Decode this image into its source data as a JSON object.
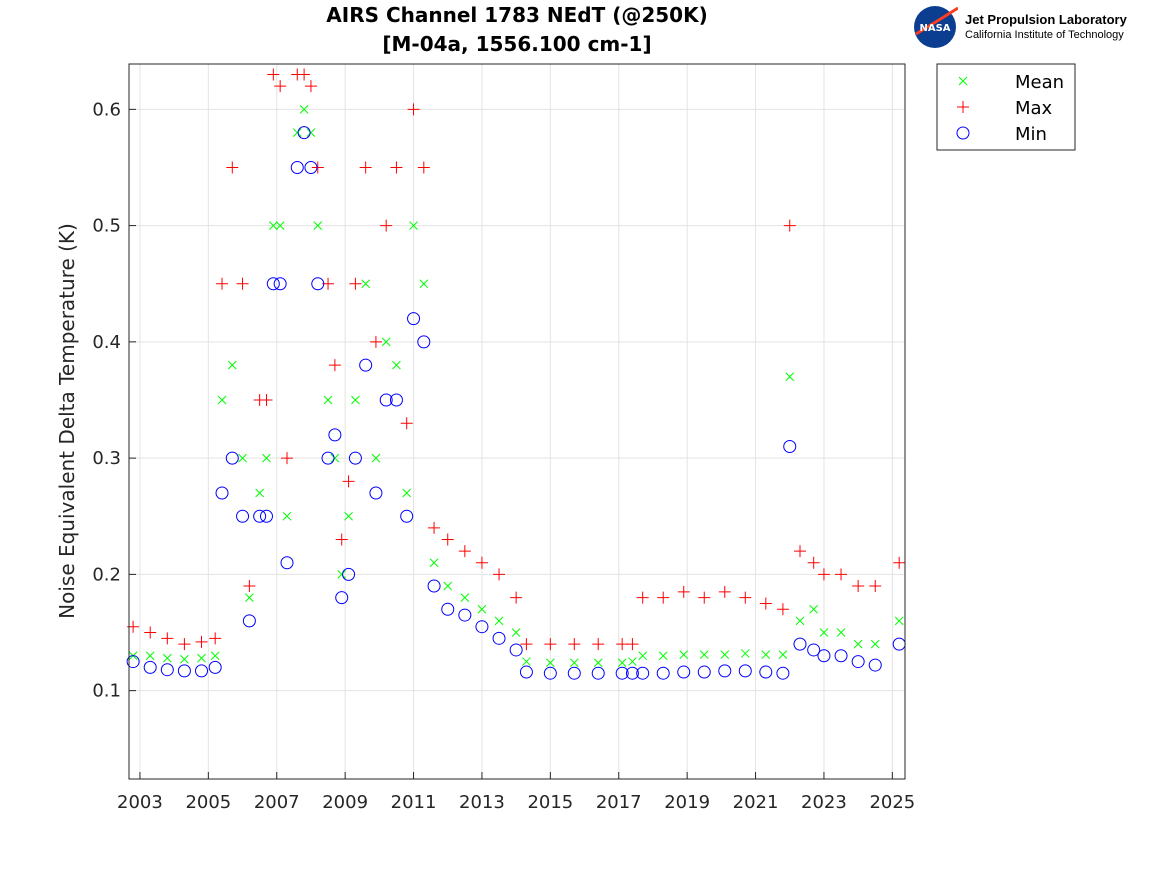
{
  "logo": {
    "agency": "NASA",
    "line1": "Jet Propulsion Laboratory",
    "line2": "California Institute of Technology"
  },
  "chart_data": {
    "type": "scatter",
    "title": [
      "AIRS Channel 1783 NEdT (@250K)",
      "[M-04a, 1556.100 cm-1]"
    ],
    "xlabel": "",
    "ylabel": "Noise Equivalent Delta Temperature (K)",
    "xlim": [
      2002.68,
      2025.37
    ],
    "ylim": [
      0.024,
      0.639
    ],
    "xticks": [
      2003,
      2005,
      2007,
      2009,
      2011,
      2013,
      2015,
      2017,
      2019,
      2021,
      2023,
      2025
    ],
    "yticks": [
      0.1,
      0.2,
      0.3,
      0.4,
      0.5,
      0.6
    ],
    "grid": true,
    "legend_position": "outside-top-right",
    "x": [
      2002.8,
      2003.3,
      2003.8,
      2004.3,
      2004.8,
      2005.2,
      2005.4,
      2005.7,
      2006.0,
      2006.2,
      2006.5,
      2006.7,
      2006.9,
      2007.1,
      2007.3,
      2007.6,
      2007.8,
      2008.0,
      2008.2,
      2008.5,
      2008.7,
      2008.9,
      2009.1,
      2009.3,
      2009.6,
      2009.9,
      2010.2,
      2010.5,
      2010.8,
      2011.0,
      2011.3,
      2011.6,
      2012.0,
      2012.5,
      2013.0,
      2013.5,
      2014.0,
      2014.3,
      2015.0,
      2015.7,
      2016.4,
      2017.1,
      2017.4,
      2017.7,
      2018.3,
      2018.9,
      2019.5,
      2020.1,
      2020.7,
      2021.3,
      2021.8,
      2022.0,
      2022.3,
      2022.7,
      2023.0,
      2023.5,
      2024.0,
      2024.5,
      2025.2
    ],
    "series": [
      {
        "name": "Mean",
        "color": "#00ff00",
        "marker": "x",
        "values": [
          0.13,
          0.13,
          0.128,
          0.127,
          0.128,
          0.13,
          0.35,
          0.38,
          0.3,
          0.18,
          0.27,
          0.3,
          0.5,
          0.5,
          0.25,
          0.58,
          0.6,
          0.58,
          0.5,
          0.35,
          0.3,
          0.2,
          0.25,
          0.35,
          0.45,
          0.3,
          0.4,
          0.38,
          0.27,
          0.5,
          0.45,
          0.21,
          0.19,
          0.18,
          0.17,
          0.16,
          0.15,
          0.125,
          0.124,
          0.124,
          0.124,
          0.124,
          0.125,
          0.13,
          0.13,
          0.131,
          0.131,
          0.131,
          0.132,
          0.131,
          0.131,
          0.37,
          0.16,
          0.17,
          0.15,
          0.15,
          0.14,
          0.14,
          0.16
        ]
      },
      {
        "name": "Max",
        "color": "#ff0000",
        "marker": "+",
        "values": [
          0.155,
          0.15,
          0.145,
          0.14,
          0.142,
          0.145,
          0.45,
          0.55,
          0.45,
          0.19,
          0.35,
          0.35,
          0.63,
          0.62,
          0.3,
          0.63,
          0.63,
          0.62,
          0.55,
          0.45,
          0.38,
          0.23,
          0.28,
          0.45,
          0.55,
          0.4,
          0.5,
          0.55,
          0.33,
          0.6,
          0.55,
          0.24,
          0.23,
          0.22,
          0.21,
          0.2,
          0.18,
          0.14,
          0.14,
          0.14,
          0.14,
          0.14,
          0.14,
          0.18,
          0.18,
          0.185,
          0.18,
          0.185,
          0.18,
          0.175,
          0.17,
          0.5,
          0.22,
          0.21,
          0.2,
          0.2,
          0.19,
          0.19,
          0.21
        ]
      },
      {
        "name": "Min",
        "color": "#0000ff",
        "marker": "o",
        "values": [
          0.125,
          0.12,
          0.118,
          0.117,
          0.117,
          0.12,
          0.27,
          0.3,
          0.25,
          0.16,
          0.25,
          0.25,
          0.45,
          0.45,
          0.21,
          0.55,
          0.58,
          0.55,
          0.45,
          0.3,
          0.32,
          0.18,
          0.2,
          0.3,
          0.38,
          0.27,
          0.35,
          0.35,
          0.25,
          0.42,
          0.4,
          0.19,
          0.17,
          0.165,
          0.155,
          0.145,
          0.135,
          0.116,
          0.115,
          0.115,
          0.115,
          0.115,
          0.115,
          0.115,
          0.115,
          0.116,
          0.116,
          0.117,
          0.117,
          0.116,
          0.115,
          0.31,
          0.14,
          0.135,
          0.13,
          0.13,
          0.125,
          0.122,
          0.14
        ]
      }
    ]
  }
}
